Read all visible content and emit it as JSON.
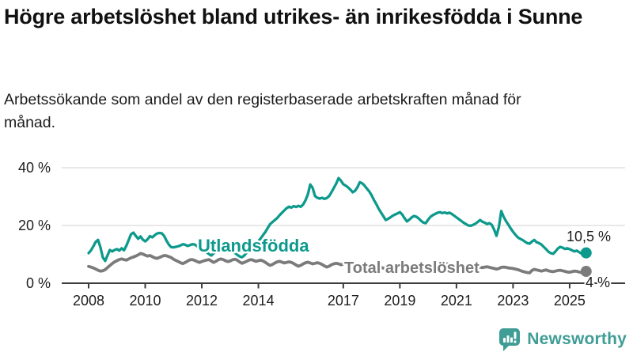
{
  "header": {
    "title": "Högre arbetslöshet bland utrikes- än inrikesfödda i Sunne",
    "subtitle": "Arbetssökande som andel av den registerbaserade arbetskraften månad för månad."
  },
  "chart_data": {
    "type": "line",
    "unit": "%",
    "grid": true,
    "legend_position": "inline-labels",
    "ylim": [
      0,
      41
    ],
    "y_ticks": [
      {
        "value": 0,
        "label": "0 %"
      },
      {
        "value": 20,
        "label": "20 %"
      },
      {
        "value": 40,
        "label": "40 %"
      }
    ],
    "x_ticks": [
      2008,
      2010,
      2012,
      2014,
      2017,
      2019,
      2021,
      2023,
      2025
    ],
    "x_range": {
      "start": "2008-01",
      "end": "2025-08",
      "step": "month"
    },
    "series": [
      {
        "name": "Utlandsfödda",
        "color": "#0d9a8c",
        "end_label": "10,5 %",
        "values": [
          10.4,
          11.4,
          12.8,
          14.3,
          15.0,
          12.5,
          9.0,
          7.7,
          9.6,
          11.5,
          11.0,
          11.5,
          11.8,
          11.3,
          12.1,
          11.4,
          13.0,
          15.0,
          17.0,
          17.5,
          16.4,
          15.4,
          16.2,
          15.1,
          14.5,
          15.2,
          16.3,
          15.9,
          16.6,
          17.2,
          17.4,
          17.3,
          16.4,
          14.8,
          13.4,
          12.5,
          12.4,
          12.6,
          12.8,
          13.1,
          13.5,
          13.3,
          12.9,
          13.2,
          13.5,
          13.4,
          12.8,
          12.2,
          11.6,
          11.2,
          10.7,
          10.1,
          9.6,
          10.3,
          11.0,
          11.6,
          12.0,
          12.3,
          12.0,
          11.8,
          11.4,
          11.0,
          10.5,
          9.9,
          9.3,
          9.0,
          9.6,
          10.6,
          11.6,
          12.5,
          13.3,
          14.0,
          14.6,
          15.5,
          16.7,
          17.8,
          19.2,
          20.5,
          21.2,
          21.9,
          22.6,
          23.6,
          24.4,
          25.2,
          26.0,
          26.5,
          26.2,
          26.7,
          26.4,
          26.8,
          26.5,
          27.3,
          28.8,
          30.8,
          34.2,
          33.0,
          30.2,
          29.6,
          29.3,
          29.6,
          29.2,
          29.5,
          30.2,
          31.5,
          33.0,
          34.5,
          36.4,
          35.5,
          34.3,
          33.8,
          33.2,
          32.4,
          31.5,
          32.0,
          33.2,
          35.0,
          34.6,
          33.8,
          32.8,
          31.8,
          30.5,
          28.8,
          27.4,
          25.8,
          24.5,
          23.2,
          21.9,
          22.3,
          22.8,
          23.4,
          23.8,
          24.2,
          24.6,
          23.8,
          22.5,
          21.4,
          22.0,
          22.8,
          23.3,
          23.0,
          22.4,
          21.6,
          21.0,
          20.8,
          22.0,
          23.0,
          23.6,
          24.0,
          24.4,
          24.6,
          24.3,
          24.5,
          24.2,
          24.4,
          24.0,
          23.4,
          22.8,
          22.2,
          21.6,
          21.0,
          20.5,
          20.0,
          19.9,
          20.2,
          20.6,
          21.2,
          21.9,
          21.3,
          21.0,
          20.5,
          20.8,
          20.2,
          18.5,
          16.4,
          19.5,
          25.0,
          23.0,
          21.5,
          20.3,
          19.0,
          17.8,
          16.8,
          15.9,
          15.4,
          15.0,
          14.4,
          13.9,
          13.7,
          14.4,
          15.0,
          14.2,
          13.9,
          13.4,
          12.6,
          11.8,
          10.9,
          10.4,
          10.2,
          11.0,
          12.0,
          12.6,
          12.3,
          11.9,
          12.1,
          11.8,
          11.4,
          11.0,
          11.3,
          10.8,
          10.3,
          10.9,
          10.5
        ]
      },
      {
        "name": "Total arbetslöshet",
        "color": "#7b7b7b",
        "end_label": "4 %",
        "values": [
          5.8,
          5.6,
          5.3,
          4.9,
          4.5,
          4.2,
          4.3,
          4.7,
          5.4,
          6.1,
          6.8,
          7.4,
          7.8,
          8.2,
          8.4,
          8.2,
          8.0,
          8.4,
          8.8,
          9.1,
          9.4,
          9.8,
          10.3,
          10.1,
          9.7,
          9.4,
          9.6,
          9.2,
          8.8,
          8.6,
          8.9,
          9.3,
          9.6,
          9.5,
          9.2,
          8.9,
          8.3,
          7.9,
          7.5,
          7.1,
          6.8,
          7.2,
          7.7,
          8.1,
          8.2,
          7.9,
          7.5,
          7.2,
          7.5,
          7.8,
          8.0,
          8.2,
          7.7,
          7.2,
          7.6,
          8.1,
          8.4,
          8.2,
          7.8,
          7.5,
          7.7,
          8.1,
          8.3,
          8.0,
          7.4,
          6.9,
          7.2,
          7.6,
          8.0,
          8.2,
          7.9,
          7.6,
          7.8,
          8.0,
          7.7,
          7.2,
          6.6,
          6.2,
          6.5,
          7.0,
          7.4,
          7.6,
          7.3,
          7.0,
          7.2,
          7.4,
          7.2,
          6.8,
          6.3,
          5.9,
          6.2,
          6.7,
          7.1,
          7.3,
          7.0,
          6.7,
          6.9,
          7.1,
          6.9,
          6.5,
          6.0,
          5.6,
          5.9,
          6.4,
          6.7,
          6.9,
          6.7,
          6.4,
          6.6,
          6.8,
          6.6,
          6.2,
          5.8,
          5.4,
          5.7,
          6.1,
          6.4,
          6.5,
          6.3,
          6.1,
          6.3,
          6.5,
          6.3,
          5.9,
          5.5,
          5.2,
          5.5,
          5.8,
          6.1,
          6.2,
          6.0,
          5.8,
          6.0,
          6.2,
          6.0,
          5.7,
          5.3,
          5.0,
          5.3,
          5.6,
          5.9,
          6.1,
          5.9,
          5.8,
          6.0,
          6.2,
          6.5,
          6.7,
          6.8,
          6.9,
          6.9,
          6.8,
          6.7,
          6.5,
          6.3,
          6.2,
          6.3,
          6.4,
          6.2,
          5.9,
          5.7,
          5.5,
          5.6,
          5.8,
          5.7,
          5.6,
          5.5,
          5.4,
          5.6,
          5.7,
          5.5,
          5.3,
          5.1,
          4.9,
          5.1,
          5.5,
          5.6,
          5.5,
          5.3,
          5.2,
          5.1,
          4.9,
          4.7,
          4.4,
          4.1,
          3.9,
          3.7,
          3.6,
          4.4,
          4.8,
          4.6,
          4.4,
          4.2,
          4.4,
          4.6,
          4.3,
          4.1,
          4.0,
          4.2,
          4.4,
          4.5,
          4.3,
          4.1,
          3.9,
          3.8,
          4.0,
          4.2,
          4.1,
          3.9,
          3.7,
          3.9,
          4.1
        ]
      }
    ]
  },
  "footer": {
    "brand": "Newsworthy"
  },
  "colors": {
    "accent_teal": "#0d9a8c",
    "series_gray": "#7b7b7b",
    "axis": "#3c3c3c",
    "gridline": "#d9d9d9",
    "text": "#111111",
    "logo_teal": "#3f9d96"
  }
}
